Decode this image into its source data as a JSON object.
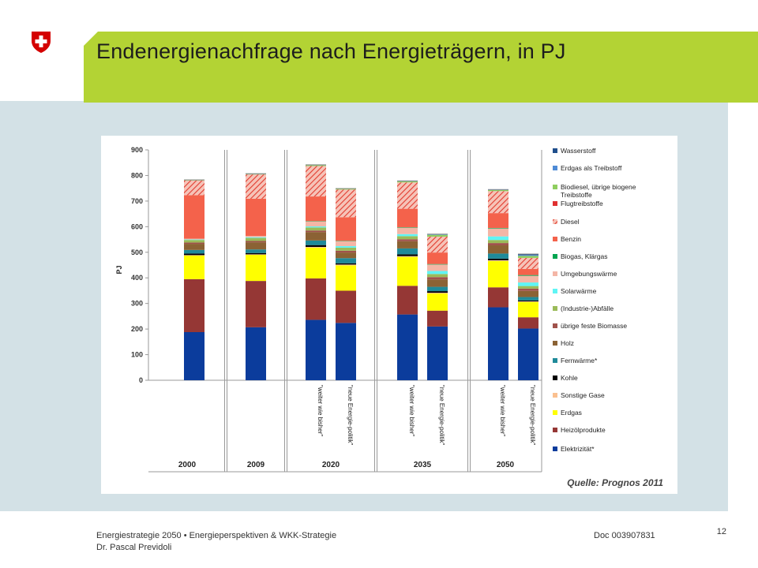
{
  "slide": {
    "title": "Endenergienachfrage nach Energieträgern, in PJ",
    "footer_line1": "Energiestrategie 2050 • Energieperspektiven & WKK-Strategie",
    "footer_line2": "Dr. Pascal Previdoli",
    "doc_number": "Doc 003907831",
    "page_number": "12",
    "colors": {
      "title_band": "#b3d334",
      "background_band": "#d3e1e6"
    }
  },
  "chart_data": {
    "type": "bar",
    "stacked": true,
    "ylabel": "PJ",
    "ylim": [
      0,
      900
    ],
    "yticks": [
      0,
      100,
      200,
      300,
      400,
      500,
      600,
      700,
      800,
      900
    ],
    "grid": false,
    "legend_position": "right",
    "source_note": "Quelle: Prognos 2011",
    "groups": [
      "2000",
      "2009",
      "2020",
      "2035",
      "2050"
    ],
    "bars": [
      {
        "group": "2000",
        "label": ""
      },
      {
        "group": "2009",
        "label": ""
      },
      {
        "group": "2020",
        "label": "\"weiter wie bisher\""
      },
      {
        "group": "2020",
        "label": "\"neue Energie-politik\""
      },
      {
        "group": "2035",
        "label": "\"weiter wie bisher\""
      },
      {
        "group": "2035",
        "label": "\"neue Energie-politik\""
      },
      {
        "group": "2050",
        "label": "\"weiter wie bisher\""
      },
      {
        "group": "2050",
        "label": "\"neue Energie-politik\""
      }
    ],
    "series": [
      {
        "name": "Elektrizität*",
        "color": "#0b3c9c",
        "values": [
          188,
          207,
          236,
          224,
          257,
          210,
          285,
          202
        ]
      },
      {
        "name": "Heizölprodukte",
        "color": "#953735",
        "values": [
          207,
          181,
          162,
          126,
          112,
          62,
          78,
          44
        ]
      },
      {
        "name": "Erdgas",
        "color": "#ffff00",
        "values": [
          92,
          102,
          120,
          99,
          113,
          67,
          103,
          60
        ]
      },
      {
        "name": "Sonstige Gase",
        "color": "#fac090",
        "values": [
          2,
          2,
          3,
          3,
          3,
          3,
          3,
          2
        ]
      },
      {
        "name": "Kohle",
        "color": "#000000",
        "values": [
          6,
          5,
          7,
          5,
          7,
          6,
          6,
          4
        ]
      },
      {
        "name": "Fernwärme*",
        "color": "#1f8a99",
        "values": [
          14,
          14,
          18,
          20,
          23,
          17,
          20,
          13
        ]
      },
      {
        "name": "Holz",
        "color": "#8b6234",
        "values": [
          24,
          28,
          33,
          22,
          28,
          29,
          32,
          24
        ]
      },
      {
        "name": "übrige feste Biomasse",
        "color": "#a0524c",
        "values": [
          5,
          5,
          6,
          7,
          8,
          9,
          9,
          9
        ]
      },
      {
        "name": "(Industrie-)Abfälle",
        "color": "#9bbb59",
        "values": [
          10,
          12,
          12,
          12,
          12,
          12,
          12,
          10
        ]
      },
      {
        "name": "Solarwärme",
        "color": "#5ff5f5",
        "values": [
          2,
          3,
          4,
          6,
          8,
          12,
          14,
          14
        ]
      },
      {
        "name": "Umgebungswärme",
        "color": "#f4b6a6",
        "values": [
          3,
          5,
          20,
          20,
          26,
          25,
          31,
          26
        ]
      },
      {
        "name": "Biogas, Klärgas",
        "color": "#00a550",
        "values": [
          0,
          0,
          1,
          1,
          1,
          2,
          2,
          3
        ]
      },
      {
        "name": "Benzin",
        "color": "#f4624b",
        "values": [
          170,
          145,
          96,
          92,
          72,
          45,
          58,
          24
        ]
      },
      {
        "name": "Diesel",
        "color": "#f4624b",
        "pattern": "hatch",
        "values": [
          58,
          95,
          119,
          108,
          103,
          62,
          86,
          43
        ]
      },
      {
        "name": "Flugtreibstoffe",
        "color": "#e03030",
        "values": [
          0,
          0,
          0,
          0,
          0,
          0,
          0,
          0
        ]
      },
      {
        "name": "Biodiesel, übrige biogene Treibstoffe",
        "color": "#8fce5f",
        "values": [
          1,
          2,
          3,
          3,
          4,
          7,
          4,
          8
        ]
      },
      {
        "name": "Erdgas als Treibstoff",
        "color": "#4f8bd6",
        "values": [
          1,
          1,
          2,
          1,
          2,
          3,
          2,
          3
        ]
      },
      {
        "name": "Wasserstoff",
        "color": "#1f4e8c",
        "values": [
          0,
          0,
          0,
          0,
          0,
          0,
          0,
          4
        ]
      }
    ],
    "legend_order": [
      "Wasserstoff",
      "Erdgas als Treibstoff",
      "Biodiesel, übrige biogene Treibstoffe",
      "Flugtreibstoffe",
      "Diesel",
      "Benzin",
      "Biogas, Klärgas",
      "Umgebungswärme",
      "Solarwärme",
      "(Industrie-)Abfälle",
      "übrige feste Biomasse",
      "Holz",
      "Fernwärme*",
      "Kohle",
      "Sonstige Gase",
      "Erdgas",
      "Heizölprodukte",
      "Elektrizität*"
    ]
  }
}
